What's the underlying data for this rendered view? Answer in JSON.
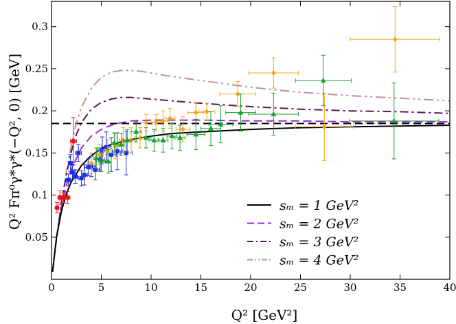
{
  "chart_data": {
    "type": "line",
    "xlabel": "Q² [GeV²]",
    "ylabel": "Q² Fπ⁰γ*γ*(−Q², 0) [GeV]",
    "xlim": [
      0,
      40
    ],
    "ylim": [
      0,
      0.33
    ],
    "xticks": [
      0,
      5,
      10,
      15,
      20,
      25,
      30,
      35,
      40
    ],
    "yticks": [
      0.05,
      0.1,
      0.15,
      0.2,
      0.25,
      0.3
    ],
    "xtick_labels": [
      "0",
      "5",
      "10",
      "15",
      "20",
      "25",
      "30",
      "35",
      "40"
    ],
    "ytick_labels": [
      "0.05",
      "0.1",
      "0.15",
      "0.2",
      "0.25",
      "0.3"
    ],
    "asymptote": {
      "value": 0.185,
      "style": "dashed",
      "color": "#000000"
    },
    "curves": [
      {
        "name": "s_m = 1 GeV²",
        "legend": "sₘ = 1 GeV²",
        "s_m": 1,
        "color": "#000000",
        "dash": "solid",
        "x": [
          0.1,
          0.5,
          1,
          1.5,
          2,
          3,
          4,
          5,
          6,
          8,
          10,
          12,
          15,
          20,
          25,
          30,
          35,
          40
        ],
        "y": [
          0.009,
          0.05,
          0.081,
          0.102,
          0.116,
          0.135,
          0.147,
          0.155,
          0.16,
          0.166,
          0.17,
          0.173,
          0.175,
          0.178,
          0.18,
          0.181,
          0.182,
          0.183
        ]
      },
      {
        "name": "s_m = 2 GeV²",
        "legend": "sₘ = 2 GeV²",
        "s_m": 2,
        "color": "#9b27d6",
        "dash": "dashed",
        "x": [
          0.1,
          0.5,
          1,
          1.5,
          2,
          3,
          4,
          5,
          6,
          7,
          8,
          10,
          12,
          15,
          20,
          25,
          30,
          35,
          40
        ],
        "y": [
          0.009,
          0.048,
          0.086,
          0.112,
          0.131,
          0.156,
          0.17,
          0.178,
          0.183,
          0.186,
          0.188,
          0.189,
          0.189,
          0.189,
          0.188,
          0.188,
          0.187,
          0.187,
          0.187
        ]
      },
      {
        "name": "s_m = 3 GeV²",
        "legend": "sₘ = 3 GeV²",
        "s_m": 3,
        "color": "#5c1353",
        "dash": "dashdot",
        "x": [
          0.1,
          0.5,
          1,
          1.5,
          2,
          2.5,
          3,
          4,
          5,
          6,
          7,
          8,
          9,
          10,
          12,
          15,
          20,
          25,
          30,
          35,
          40
        ],
        "y": [
          0.009,
          0.049,
          0.09,
          0.125,
          0.152,
          0.172,
          0.186,
          0.202,
          0.21,
          0.214,
          0.216,
          0.216,
          0.215,
          0.214,
          0.212,
          0.209,
          0.205,
          0.202,
          0.2,
          0.199,
          0.197
        ]
      },
      {
        "name": "s_m = 4 GeV²",
        "legend": "sₘ = 4 GeV²",
        "s_m": 4,
        "color": "#c09097",
        "dash": "dashdotdot",
        "x": [
          0.1,
          0.5,
          1,
          1.5,
          2,
          2.5,
          3,
          4,
          5,
          6,
          7,
          8,
          9,
          10,
          12,
          15,
          20,
          25,
          30,
          35,
          40
        ],
        "y": [
          0.009,
          0.049,
          0.092,
          0.128,
          0.16,
          0.186,
          0.204,
          0.227,
          0.24,
          0.246,
          0.248,
          0.248,
          0.247,
          0.245,
          0.241,
          0.236,
          0.228,
          0.222,
          0.218,
          0.215,
          0.212
        ]
      }
    ],
    "data_series": [
      {
        "name": "red-circles",
        "color": "#ee1111",
        "marker": "circle",
        "points": [
          {
            "x": 0.55,
            "y": 0.085,
            "yerr": 0.006,
            "xerr": 0.15
          },
          {
            "x": 0.85,
            "y": 0.097,
            "yerr": 0.008,
            "xerr": 0.2
          },
          {
            "x": 1.2,
            "y": 0.097,
            "yerr": 0.006,
            "xerr": 0.2
          },
          {
            "x": 1.6,
            "y": 0.097,
            "yerr": 0.007,
            "xerr": 0.25
          },
          {
            "x": 2.2,
            "y": 0.164,
            "yerr": 0.028,
            "xerr": 0.3
          }
        ]
      },
      {
        "name": "blue-squares",
        "color": "#1a2de0",
        "marker": "square",
        "points": [
          {
            "x": 1.7,
            "y": 0.118,
            "yerr": 0.007,
            "xerr": 0.2
          },
          {
            "x": 1.9,
            "y": 0.138,
            "yerr": 0.01,
            "xerr": 0.2
          },
          {
            "x": 2.1,
            "y": 0.127,
            "yerr": 0.008,
            "xerr": 0.2
          },
          {
            "x": 2.4,
            "y": 0.122,
            "yerr": 0.008,
            "xerr": 0.25
          },
          {
            "x": 2.7,
            "y": 0.15,
            "yerr": 0.01,
            "xerr": 0.3
          },
          {
            "x": 3.0,
            "y": 0.12,
            "yerr": 0.009,
            "xerr": 0.3
          },
          {
            "x": 3.3,
            "y": 0.124,
            "yerr": 0.012,
            "xerr": 0.3
          },
          {
            "x": 3.7,
            "y": 0.133,
            "yerr": 0.01,
            "xerr": 0.35
          },
          {
            "x": 4.0,
            "y": 0.134,
            "yerr": 0.012,
            "xerr": 0.35
          },
          {
            "x": 4.4,
            "y": 0.13,
            "yerr": 0.012,
            "xerr": 0.4
          },
          {
            "x": 4.9,
            "y": 0.142,
            "yerr": 0.014,
            "xerr": 0.4
          },
          {
            "x": 5.1,
            "y": 0.153,
            "yerr": 0.016,
            "xerr": 0.45
          },
          {
            "x": 5.5,
            "y": 0.157,
            "yerr": 0.018,
            "xerr": 0.45
          },
          {
            "x": 6.0,
            "y": 0.148,
            "yerr": 0.02,
            "xerr": 0.5
          },
          {
            "x": 6.6,
            "y": 0.152,
            "yerr": 0.022,
            "xerr": 0.5
          },
          {
            "x": 7.5,
            "y": 0.15,
            "yerr": 0.026,
            "xerr": 0.6
          }
        ]
      },
      {
        "name": "orange-diamonds",
        "color": "#f1a51a",
        "marker": "diamond",
        "points": [
          {
            "x": 4.0,
            "y": 0.138,
            "yerr": 0.012,
            "xerr": 0.4
          },
          {
            "x": 4.8,
            "y": 0.148,
            "yerr": 0.012,
            "xerr": 0.4
          },
          {
            "x": 5.6,
            "y": 0.152,
            "yerr": 0.014,
            "xerr": 0.4
          },
          {
            "x": 6.4,
            "y": 0.158,
            "yerr": 0.015,
            "xerr": 0.4
          },
          {
            "x": 7.2,
            "y": 0.165,
            "yerr": 0.015,
            "xerr": 0.4
          },
          {
            "x": 8.0,
            "y": 0.165,
            "yerr": 0.015,
            "xerr": 0.4
          },
          {
            "x": 8.9,
            "y": 0.168,
            "yerr": 0.012,
            "xerr": 0.5
          },
          {
            "x": 9.5,
            "y": 0.186,
            "yerr": 0.01,
            "xerr": 0.5
          },
          {
            "x": 10.5,
            "y": 0.186,
            "yerr": 0.01,
            "xerr": 0.5
          },
          {
            "x": 11.2,
            "y": 0.188,
            "yerr": 0.012,
            "xerr": 0.5
          },
          {
            "x": 11.9,
            "y": 0.191,
            "yerr": 0.012,
            "xerr": 0.5
          },
          {
            "x": 13.2,
            "y": 0.178,
            "yerr": 0.015,
            "xerr": 0.7
          },
          {
            "x": 14.5,
            "y": 0.198,
            "yerr": 0.012,
            "xerr": 0.8
          },
          {
            "x": 15.6,
            "y": 0.199,
            "yerr": 0.01,
            "xerr": 0.8
          },
          {
            "x": 18.7,
            "y": 0.22,
            "yerr": 0.015,
            "xerr": 1.8
          },
          {
            "x": 22.3,
            "y": 0.245,
            "yerr": 0.018,
            "xerr": 2.5
          },
          {
            "x": 27.4,
            "y": 0.181,
            "yerr": 0.04,
            "xerr": 2.9
          },
          {
            "x": 34.5,
            "y": 0.285,
            "yerr": 0.039,
            "xerr": 4.5
          }
        ]
      },
      {
        "name": "green-triangles",
        "color": "#19a02e",
        "marker": "triangle",
        "points": [
          {
            "x": 4.5,
            "y": 0.144,
            "yerr": 0.012,
            "xerr": 0.3
          },
          {
            "x": 5.0,
            "y": 0.141,
            "yerr": 0.013,
            "xerr": 0.3
          },
          {
            "x": 5.7,
            "y": 0.14,
            "yerr": 0.014,
            "xerr": 0.3
          },
          {
            "x": 6.3,
            "y": 0.162,
            "yerr": 0.012,
            "xerr": 0.3
          },
          {
            "x": 7.0,
            "y": 0.16,
            "yerr": 0.013,
            "xerr": 0.3
          },
          {
            "x": 7.6,
            "y": 0.165,
            "yerr": 0.013,
            "xerr": 0.4
          },
          {
            "x": 8.5,
            "y": 0.175,
            "yerr": 0.012,
            "xerr": 0.5
          },
          {
            "x": 9.5,
            "y": 0.168,
            "yerr": 0.012,
            "xerr": 0.5
          },
          {
            "x": 10.3,
            "y": 0.165,
            "yerr": 0.013,
            "xerr": 0.5
          },
          {
            "x": 11.2,
            "y": 0.165,
            "yerr": 0.014,
            "xerr": 0.5
          },
          {
            "x": 12.1,
            "y": 0.17,
            "yerr": 0.015,
            "xerr": 0.5
          },
          {
            "x": 12.9,
            "y": 0.168,
            "yerr": 0.015,
            "xerr": 0.5
          },
          {
            "x": 14.5,
            "y": 0.172,
            "yerr": 0.018,
            "xerr": 0.9
          },
          {
            "x": 16.0,
            "y": 0.179,
            "yerr": 0.02,
            "xerr": 1.0
          },
          {
            "x": 17.0,
            "y": 0.184,
            "yerr": 0.022,
            "xerr": 1.2
          },
          {
            "x": 19.0,
            "y": 0.198,
            "yerr": 0.022,
            "xerr": 1.5
          },
          {
            "x": 22.3,
            "y": 0.196,
            "yerr": 0.025,
            "xerr": 2.5
          },
          {
            "x": 27.3,
            "y": 0.236,
            "yerr": 0.03,
            "xerr": 2.8
          },
          {
            "x": 34.4,
            "y": 0.188,
            "yerr": 0.045,
            "xerr": 4.5
          }
        ]
      }
    ],
    "legend_position": "lower-right",
    "legend_entries": [
      {
        "label": "sₘ = 1 GeV²",
        "color": "#000000",
        "dash": "solid"
      },
      {
        "label": "sₘ = 2 GeV²",
        "color": "#9b27d6",
        "dash": "dashed"
      },
      {
        "label": "sₘ = 3 GeV²",
        "color": "#5c1353",
        "dash": "dashdot"
      },
      {
        "label": "sₘ = 4 GeV²",
        "color": "#c09097",
        "dash": "dashdotdot"
      }
    ]
  }
}
